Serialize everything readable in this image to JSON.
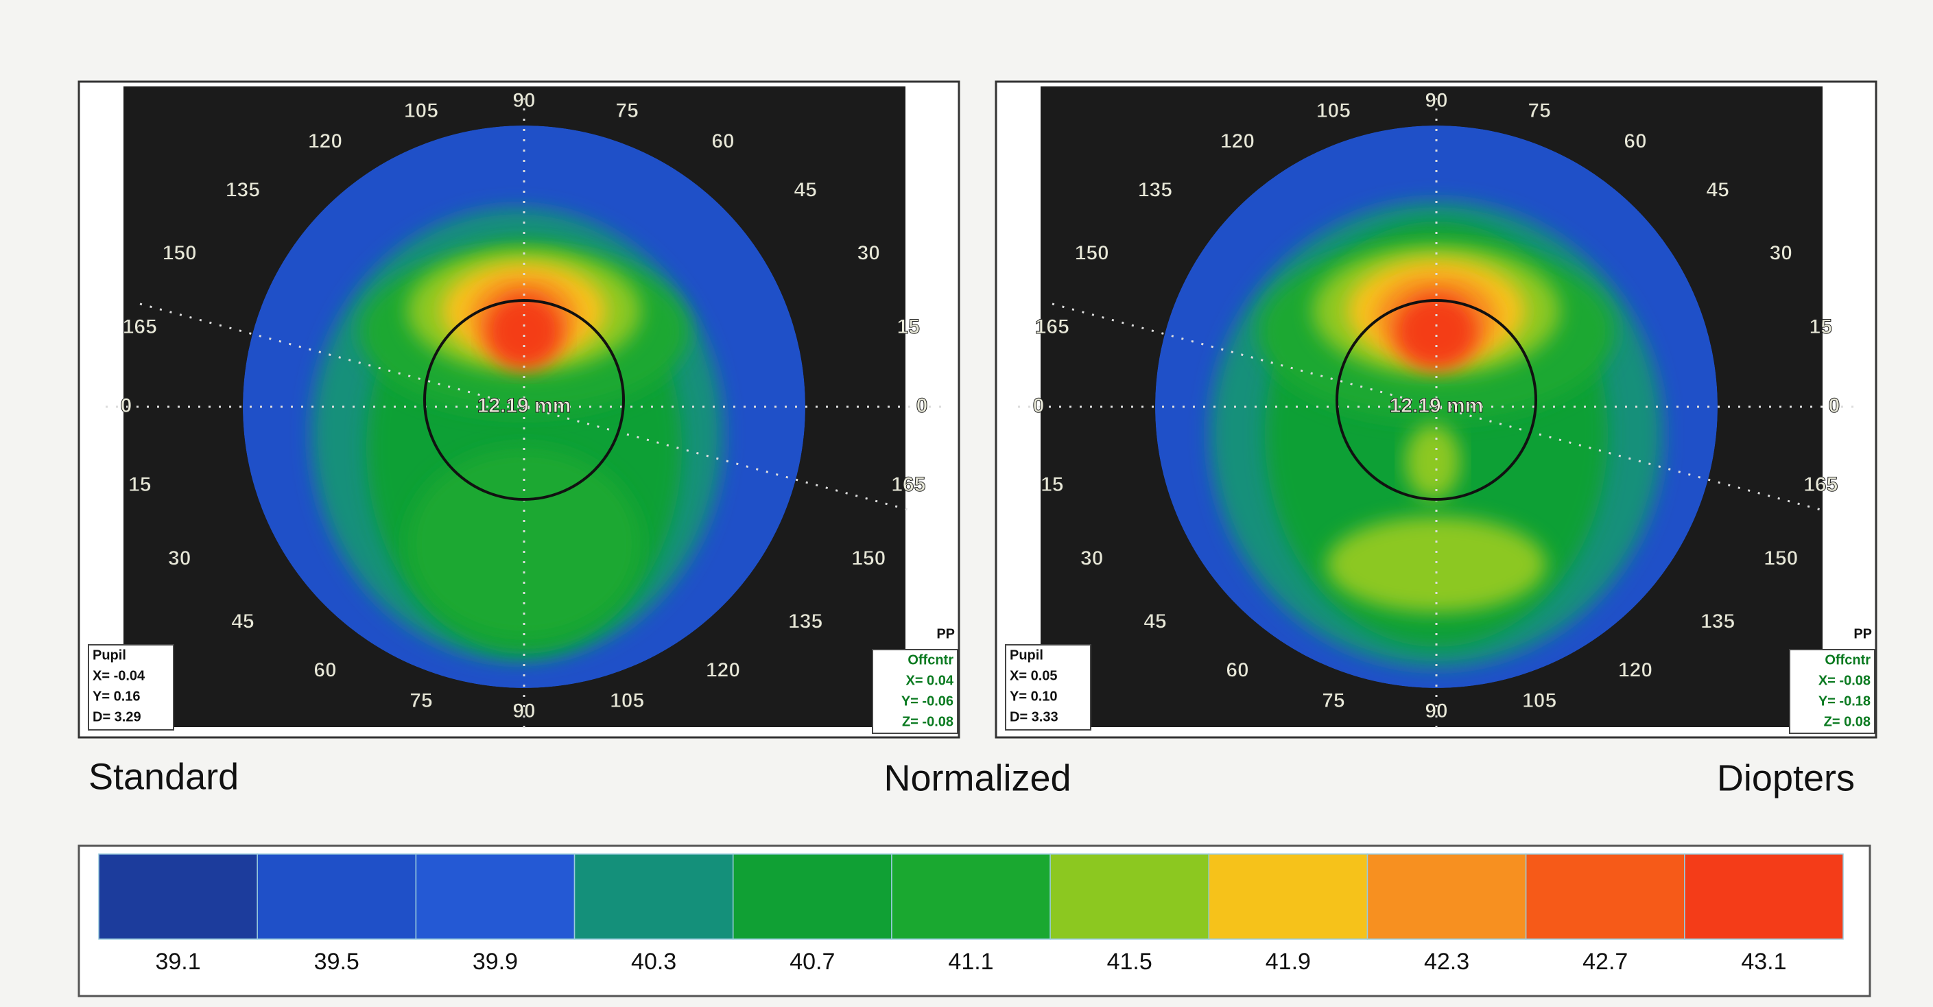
{
  "maps": [
    {
      "angle_labels": [
        "0",
        "15",
        "30",
        "45",
        "60",
        "75",
        "90",
        "105",
        "120",
        "135",
        "150",
        "165",
        "0",
        "15",
        "30",
        "45",
        "60",
        "75",
        "90",
        "105",
        "120",
        "135",
        "150",
        "165"
      ],
      "diameter": "12.19 mm",
      "corner": "PP",
      "pupil": {
        "title": "Pupil",
        "x": "X= -0.04",
        "y": "Y= 0.16",
        "d": "D= 3.29"
      },
      "offcenter": {
        "title": "Offcntr",
        "x": "X= 0.04",
        "y": "Y= -0.06",
        "z": "Z= -0.08"
      }
    },
    {
      "angle_labels": [
        "0",
        "15",
        "30",
        "45",
        "60",
        "75",
        "90",
        "105",
        "120",
        "135",
        "150",
        "165",
        "0",
        "15",
        "30",
        "45",
        "60",
        "75",
        "90",
        "105",
        "120",
        "135",
        "150",
        "165"
      ],
      "diameter": "12.19 mm",
      "corner": "PP",
      "pupil": {
        "title": "Pupil",
        "x": "X= 0.05",
        "y": "Y= 0.10",
        "d": "D= 3.33"
      },
      "offcenter": {
        "title": "Offcntr",
        "x": "X= -0.08",
        "y": "Y= -0.18",
        "z": "Z= 0.08"
      }
    }
  ],
  "labels": {
    "standard": "Standard",
    "normalized": "Normalized",
    "diopters": "Diopters"
  },
  "scale": {
    "values": [
      "39.1",
      "39.5",
      "39.9",
      "40.3",
      "40.7",
      "41.1",
      "41.5",
      "41.9",
      "42.3",
      "42.7",
      "43.1"
    ],
    "colors": [
      "#1c3c9c",
      "#1f50c8",
      "#2459d4",
      "#14907a",
      "#10a034",
      "#1aa830",
      "#8cc820",
      "#f6c21a",
      "#f79020",
      "#f65a18",
      "#f43c18"
    ]
  }
}
